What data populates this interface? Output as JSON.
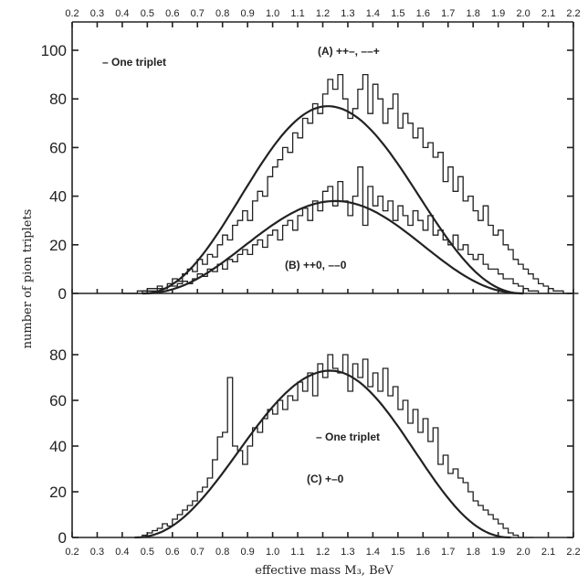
{
  "chart_data": {
    "type": "histogram",
    "xlabel": "effective mass M₃, BeV",
    "ylabel": "number of pion triplets",
    "x_ticks": [
      "0.2",
      "0.3",
      "0.4",
      "0.5",
      "0.6",
      "0.7",
      "0.8",
      "0.9",
      "1.0",
      "1.1",
      "1.2",
      "1.3",
      "1.4",
      "1.5",
      "1.6",
      "1.7",
      "1.8",
      "1.9",
      "2.0",
      "2.1",
      "2.2"
    ],
    "top_x_ticks": [
      "0.2",
      "0.3",
      "0.4",
      "0.5",
      "0.6",
      "0.7",
      "0.8",
      "0.9",
      "1.0",
      "1.1",
      "1.2",
      "1.3",
      "1.4",
      "1.5",
      "1.6",
      "1.7",
      "1.8",
      "1.9",
      "2.0",
      "2.1",
      "2.2"
    ],
    "xlim": [
      0.2,
      2.2
    ],
    "panels": [
      {
        "id": "upper",
        "ylim": [
          0,
          100
        ],
        "y_ticks": [
          0,
          20,
          40,
          60,
          80,
          100
        ],
        "legend": "– One triplet",
        "series": [
          {
            "name": "(A) ++–, ––+",
            "bin_width": 0.02,
            "x_start": 0.4,
            "counts": [
              0,
              0,
              0,
              1,
              1,
              2,
              2,
              3,
              2,
              4,
              6,
              5,
              8,
              10,
              9,
              14,
              12,
              16,
              15,
              20,
              24,
              22,
              28,
              30,
              34,
              30,
              38,
              42,
              40,
              48,
              52,
              55,
              60,
              58,
              66,
              64,
              72,
              70,
              78,
              74,
              82,
              88,
              84,
              90,
              80,
              72,
              76,
              84,
              90,
              74,
              86,
              80,
              70,
              76,
              82,
              68,
              74,
              70,
              64,
              68,
              60,
              62,
              56,
              58,
              46,
              52,
              42,
              48,
              38,
              40,
              34,
              30,
              36,
              28,
              24,
              26,
              20,
              18,
              14,
              12,
              10,
              8,
              6,
              4,
              3,
              2,
              1,
              1,
              0,
              0,
              0
            ]
          },
          {
            "name": "(B) ++0, ––0",
            "bin_width": 0.02,
            "x_start": 0.4,
            "counts": [
              0,
              0,
              0,
              0,
              1,
              1,
              1,
              2,
              2,
              3,
              3,
              4,
              5,
              4,
              6,
              8,
              7,
              10,
              9,
              12,
              10,
              14,
              13,
              16,
              18,
              16,
              20,
              22,
              19,
              24,
              26,
              22,
              28,
              30,
              26,
              32,
              35,
              30,
              38,
              34,
              42,
              44,
              36,
              46,
              38,
              32,
              40,
              52,
              28,
              44,
              36,
              40,
              34,
              38,
              30,
              36,
              32,
              28,
              34,
              30,
              26,
              32,
              24,
              26,
              22,
              20,
              24,
              18,
              20,
              16,
              14,
              16,
              12,
              10,
              10,
              8,
              6,
              6,
              4,
              3,
              2,
              1,
              1,
              0,
              0,
              0,
              0,
              0,
              0,
              0,
              0
            ]
          }
        ],
        "fits": [
          {
            "name": "A",
            "peak_x": 1.22,
            "peak_y": 77,
            "x_start": 0.48,
            "x_end": 2.0
          },
          {
            "name": "B",
            "peak_x": 1.25,
            "peak_y": 38,
            "x_start": 0.48,
            "x_end": 2.0
          }
        ],
        "annotations": [
          {
            "text": "(A) ++–, ––+",
            "at": [
              1.3,
              92
            ]
          },
          {
            "text": "(B) ++0, ––0",
            "at": [
              1.3,
              12
            ]
          }
        ]
      },
      {
        "id": "lower",
        "ylim": [
          0,
          88
        ],
        "y_ticks": [
          0,
          20,
          40,
          60,
          80
        ],
        "legend": "– One triplet",
        "series": [
          {
            "name": "(C) +–0",
            "bin_width": 0.02,
            "x_start": 0.48,
            "counts": [
              1,
              2,
              3,
              4,
              6,
              5,
              8,
              10,
              12,
              14,
              16,
              20,
              22,
              26,
              34,
              44,
              46,
              70,
              40,
              38,
              32,
              40,
              48,
              46,
              52,
              56,
              54,
              60,
              56,
              62,
              60,
              68,
              64,
              72,
              62,
              76,
              70,
              80,
              74,
              72,
              80,
              64,
              76,
              70,
              78,
              66,
              72,
              64,
              74,
              62,
              66,
              56,
              60,
              50,
              56,
              46,
              52,
              42,
              48,
              32,
              36,
              28,
              30,
              26,
              24,
              20,
              16,
              14,
              12,
              10,
              8,
              6,
              4,
              2,
              1,
              0,
              0,
              0
            ]
          }
        ],
        "fits": [
          {
            "name": "C",
            "peak_x": 1.23,
            "peak_y": 73,
            "x_start": 0.45,
            "x_end": 1.95
          }
        ],
        "annotations": [
          {
            "text": "– One triplet",
            "at": [
              1.35,
              42
            ]
          },
          {
            "text": "(C) +–0",
            "at": [
              1.25,
              18
            ]
          }
        ]
      }
    ]
  }
}
